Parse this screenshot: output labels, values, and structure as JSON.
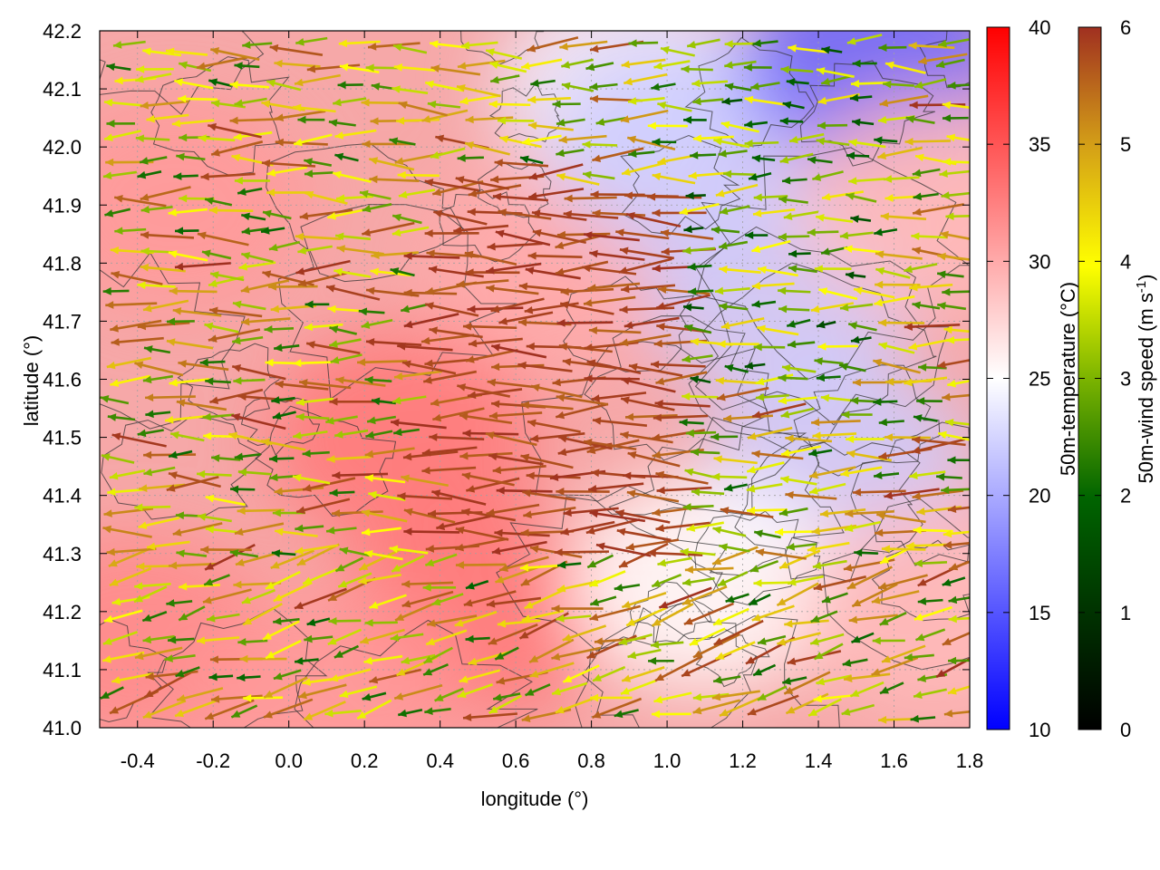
{
  "chart_data": {
    "type": "heatmap",
    "title": "",
    "xlabel": "longitude (°)",
    "ylabel": "latitude (°)",
    "xlim": [
      -0.5,
      1.8
    ],
    "ylim": [
      41.0,
      42.2
    ],
    "x_ticks": [
      "-0.4",
      "-0.2",
      "0.0",
      "0.2",
      "0.4",
      "0.6",
      "0.8",
      "1.0",
      "1.2",
      "1.4",
      "1.6",
      "1.8"
    ],
    "x_tick_values": [
      -0.4,
      -0.2,
      0.0,
      0.2,
      0.4,
      0.6,
      0.8,
      1.0,
      1.2,
      1.4,
      1.6,
      1.8
    ],
    "y_ticks": [
      "41.0",
      "41.1",
      "41.2",
      "41.3",
      "41.4",
      "41.5",
      "41.6",
      "41.7",
      "41.8",
      "41.9",
      "42.0",
      "42.1",
      "42.2"
    ],
    "y_tick_values": [
      41.0,
      41.1,
      41.2,
      41.3,
      41.4,
      41.5,
      41.6,
      41.7,
      41.8,
      41.9,
      42.0,
      42.1,
      42.2
    ],
    "grid": true,
    "temperature_colorbar": {
      "title": "50m-temperature (°C)",
      "range": [
        10,
        40
      ],
      "ticks": [
        "10",
        "15",
        "20",
        "25",
        "30",
        "35",
        "40"
      ],
      "tick_values": [
        10,
        15,
        20,
        25,
        30,
        35,
        40
      ],
      "colors": [
        "#0000ff",
        "#ffffff",
        "#ff0000"
      ]
    },
    "wind_colorbar": {
      "title": "50m-wind speed (m s",
      "title_sup": "-1",
      "title_end": ")",
      "range": [
        0,
        6
      ],
      "ticks": [
        "0",
        "1",
        "2",
        "3",
        "4",
        "5",
        "6"
      ],
      "tick_values": [
        0,
        1,
        2,
        3,
        4,
        5,
        6
      ],
      "colors": [
        "#000000",
        "#006400",
        "#7cb400",
        "#ffff00",
        "#d4a017",
        "#a03020"
      ]
    },
    "temperature_field": {
      "description_regions": [
        {
          "lon": -0.3,
          "lat": 41.9,
          "temp": 31
        },
        {
          "lon": 0.3,
          "lat": 41.5,
          "temp": 33
        },
        {
          "lon": 0.5,
          "lat": 41.2,
          "temp": 33
        },
        {
          "lon": 0.7,
          "lat": 41.8,
          "temp": 30
        },
        {
          "lon": 0.9,
          "lat": 42.1,
          "temp": 24
        },
        {
          "lon": 1.05,
          "lat": 42.0,
          "temp": 22
        },
        {
          "lon": 1.3,
          "lat": 41.75,
          "temp": 22
        },
        {
          "lon": 1.45,
          "lat": 41.45,
          "temp": 22
        },
        {
          "lon": 1.55,
          "lat": 42.15,
          "temp": 16
        },
        {
          "lon": 1.1,
          "lat": 41.25,
          "temp": 25
        },
        {
          "lon": 1.7,
          "lat": 41.2,
          "temp": 29
        },
        {
          "lon": 1.7,
          "lat": 41.9,
          "temp": 29
        },
        {
          "lon": -0.4,
          "lat": 41.15,
          "temp": 32
        },
        {
          "lon": 0.1,
          "lat": 41.05,
          "temp": 31
        }
      ]
    },
    "wind_vectors_summary": {
      "dominant_direction": "westward",
      "max_speed": 6,
      "min_speed": 0
    }
  }
}
